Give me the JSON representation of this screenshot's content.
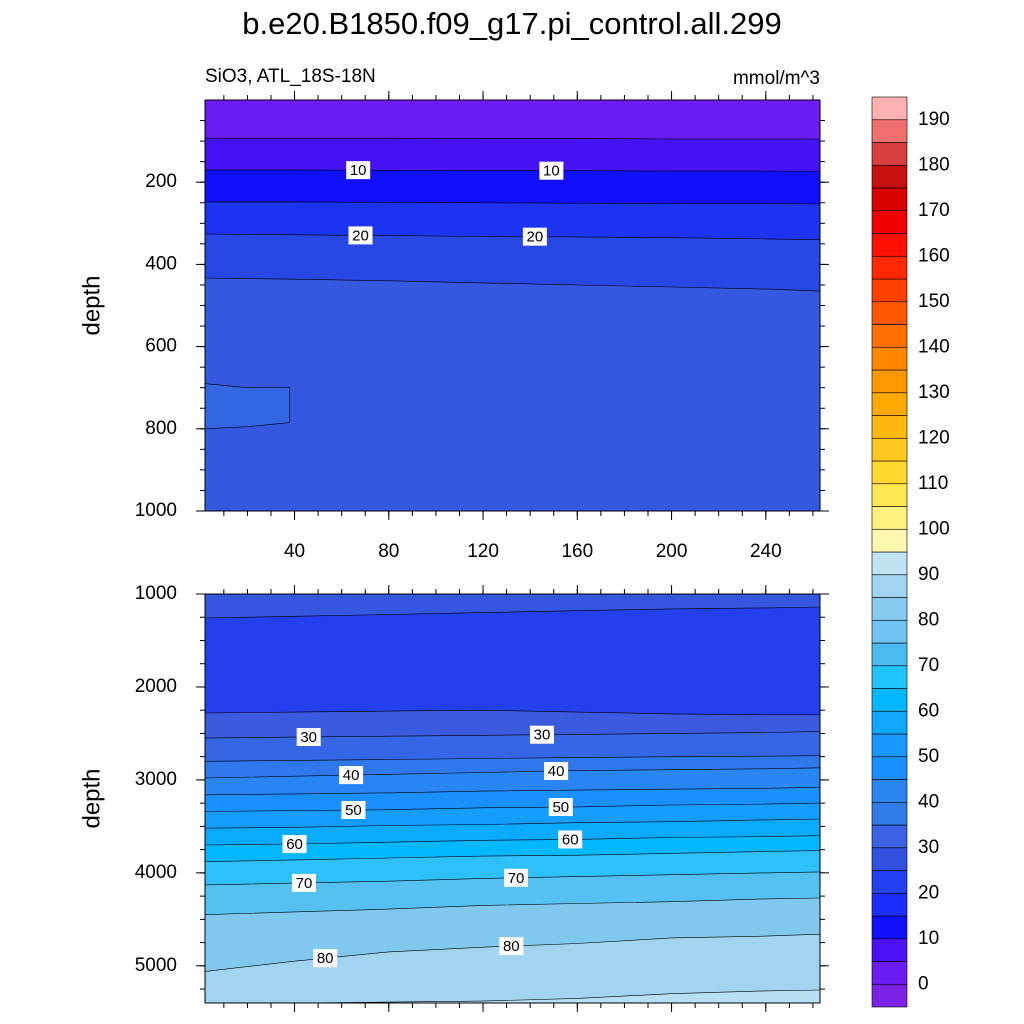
{
  "chart_data": {
    "type": "contour",
    "title": "b.e20.B1850.f09_g17.pi_control.all.299",
    "subtitle": "SiO3, ATL_18S-18N",
    "units": "mmol/m^3",
    "colorbar": {
      "levels": [
        0,
        5,
        10,
        15,
        20,
        25,
        30,
        35,
        40,
        45,
        50,
        55,
        60,
        65,
        70,
        75,
        80,
        85,
        90,
        95,
        100,
        105,
        110,
        115,
        120,
        125,
        130,
        135,
        140,
        145,
        150,
        155,
        160,
        165,
        170,
        175,
        180,
        185,
        190
      ],
      "ticks": [
        0,
        10,
        20,
        30,
        40,
        50,
        60,
        70,
        80,
        90,
        100,
        110,
        120,
        130,
        140,
        150,
        160,
        170,
        180,
        190
      ],
      "colors": [
        "#7b22e6",
        "#6a1cf2",
        "#4c10f5",
        "#1010ff",
        "#1a2eff",
        "#2240f0",
        "#3050e0",
        "#3a62e2",
        "#2f7be8",
        "#2a85f0",
        "#1a90ff",
        "#1898ff",
        "#10a8ff",
        "#00b8ff",
        "#20c4ff",
        "#4bbcf0",
        "#70c4f0",
        "#87ccf0",
        "#a0d4f0",
        "#c0e4f4",
        "#fff8b0",
        "#fff080",
        "#ffe850",
        "#ffd830",
        "#ffc820",
        "#ffb810",
        "#ffa800",
        "#ff9800",
        "#ff8800",
        "#ff7000",
        "#ff5800",
        "#ff4000",
        "#ff2800",
        "#ff1000",
        "#f00000",
        "#d80000",
        "#c81010",
        "#d84040",
        "#f07070",
        "#ffb0b0"
      ]
    },
    "panels": [
      {
        "ylabel": "depth",
        "xlim": [
          2,
          263
        ],
        "ylim": [
          0,
          1000
        ],
        "xticks": [
          40,
          80,
          120,
          160,
          200,
          240
        ],
        "yticks": [
          200,
          400,
          600,
          800,
          1000
        ],
        "color_top": "#6a1cf2",
        "contours": [
          {
            "level": 5,
            "x": [
              2,
              40,
              80,
              120,
              160,
              200,
              240,
              263
            ],
            "depth": [
              93,
              93,
              93,
              94,
              94,
              95,
              95,
              95
            ],
            "color_below": "#4412f5"
          },
          {
            "level": 10,
            "x": [
              2,
              40,
              80,
              120,
              160,
              200,
              240,
              263
            ],
            "depth": [
              170,
              170,
              171,
              172,
              172,
              173,
              173,
              174
            ],
            "color_below": "#1010ff",
            "labels": [
              "10",
              "10"
            ]
          },
          {
            "level": 15,
            "x": [
              2,
              40,
              80,
              120,
              160,
              200,
              240,
              263
            ],
            "depth": [
              248,
              248,
              249,
              250,
              251,
              252,
              252,
              253
            ],
            "color_below": "#1c34f2"
          },
          {
            "level": 20,
            "x": [
              2,
              40,
              80,
              120,
              160,
              200,
              240,
              263
            ],
            "depth": [
              326,
              328,
              330,
              332,
              333,
              335,
              338,
              340
            ],
            "color_below": "#2848e6",
            "labels": [
              "20",
              "20"
            ]
          },
          {
            "level": 25,
            "x": [
              2,
              40,
              80,
              120,
              160,
              200,
              240,
              263
            ],
            "depth": [
              433,
              436,
              440,
              445,
              450,
              455,
              460,
              465
            ],
            "color_below": "#3558e0"
          },
          {
            "level": 30,
            "closed": true,
            "x": [
              2,
              20,
              38,
              38,
              20,
              2
            ],
            "depth": [
              690,
              700,
              700,
              785,
              795,
              800
            ],
            "color_below": "#3366e2"
          }
        ]
      },
      {
        "ylabel": "depth",
        "xlim": [
          2,
          263
        ],
        "ylim": [
          1000,
          5400
        ],
        "xticks": [
          40,
          80,
          120,
          160,
          200,
          240
        ],
        "yticks": [
          1000,
          2000,
          3000,
          4000,
          5000
        ],
        "color_top": "#3556e0",
        "contours": [
          {
            "level": 25,
            "x": [
              2,
              40,
              80,
              120,
              160,
              200,
              240,
              263
            ],
            "depth": [
              1258,
              1240,
              1220,
              1200,
              1180,
              1160,
              1150,
              1140
            ],
            "color_below": "#2440ee"
          },
          {
            "level": 25,
            "x": [
              2,
              40,
              80,
              120,
              160,
              200,
              240,
              263
            ],
            "depth": [
              2280,
              2270,
              2260,
              2250,
              2270,
              2290,
              2300,
              2300
            ],
            "color_below": "#3a5ae0"
          },
          {
            "level": 30,
            "x": [
              2,
              40,
              80,
              120,
              160,
              200,
              240,
              263
            ],
            "depth": [
              2550,
              2540,
              2530,
              2520,
              2510,
              2500,
              2490,
              2480
            ],
            "color_below": "#3566e6",
            "labels": [
              "30",
              "30"
            ]
          },
          {
            "level": 35,
            "x": [
              2,
              40,
              80,
              120,
              160,
              200,
              240,
              263
            ],
            "depth": [
              2800,
              2790,
              2780,
              2770,
              2760,
              2750,
              2745,
              2740
            ],
            "color_below": "#2f78ec"
          },
          {
            "level": 40,
            "x": [
              2,
              40,
              80,
              120,
              160,
              200,
              240,
              263
            ],
            "depth": [
              2980,
              2960,
              2940,
              2920,
              2900,
              2890,
              2880,
              2870
            ],
            "color_below": "#2886f4",
            "labels": [
              "40",
              "40"
            ]
          },
          {
            "level": 45,
            "x": [
              2,
              40,
              80,
              120,
              160,
              200,
              240,
              263
            ],
            "depth": [
              3160,
              3150,
              3140,
              3120,
              3110,
              3100,
              3090,
              3080
            ],
            "color_below": "#1a90ff"
          },
          {
            "level": 50,
            "x": [
              2,
              40,
              80,
              120,
              160,
              200,
              240,
              263
            ],
            "depth": [
              3340,
              3330,
              3320,
              3300,
              3290,
              3270,
              3260,
              3250
            ],
            "color_below": "#159cff",
            "labels": [
              "50",
              "50"
            ]
          },
          {
            "level": 55,
            "x": [
              2,
              40,
              80,
              120,
              160,
              200,
              240,
              263
            ],
            "depth": [
              3520,
              3510,
              3490,
              3480,
              3460,
              3450,
              3430,
              3420
            ],
            "color_below": "#0aaaff"
          },
          {
            "level": 60,
            "x": [
              2,
              40,
              80,
              120,
              160,
              200,
              240,
              263
            ],
            "depth": [
              3700,
              3690,
              3670,
              3650,
              3640,
              3620,
              3610,
              3600
            ],
            "color_below": "#00b8ff",
            "labels": [
              "60",
              "60"
            ]
          },
          {
            "level": 65,
            "x": [
              2,
              40,
              80,
              120,
              160,
              200,
              240,
              263
            ],
            "depth": [
              3880,
              3860,
              3840,
              3820,
              3810,
              3790,
              3770,
              3760
            ],
            "color_below": "#2ec0fa"
          },
          {
            "level": 70,
            "x": [
              2,
              40,
              80,
              120,
              160,
              200,
              240,
              263
            ],
            "depth": [
              4130,
              4110,
              4090,
              4060,
              4040,
              4020,
              4000,
              3990
            ],
            "color_below": "#55c0f2",
            "labels": [
              "70",
              "70"
            ]
          },
          {
            "level": 75,
            "x": [
              2,
              40,
              80,
              120,
              160,
              200,
              240,
              263
            ],
            "depth": [
              4450,
              4420,
              4390,
              4350,
              4330,
              4310,
              4280,
              4270
            ],
            "color_below": "#80c8ee"
          },
          {
            "level": 80,
            "x": [
              2,
              40,
              80,
              120,
              160,
              200,
              240,
              263
            ],
            "depth": [
              5060,
              4950,
              4850,
              4800,
              4760,
              4700,
              4680,
              4660
            ],
            "color_below": "#a0d4f0",
            "labels": [
              "80",
              "80"
            ]
          },
          {
            "level": 85,
            "x": [
              2,
              40,
              80,
              120,
              160,
              200,
              240,
              263
            ],
            "depth": [
              5400,
              5400,
              5390,
              5380,
              5350,
              5300,
              5270,
              5260
            ],
            "color_below": "#b8e0f4"
          }
        ]
      }
    ]
  }
}
